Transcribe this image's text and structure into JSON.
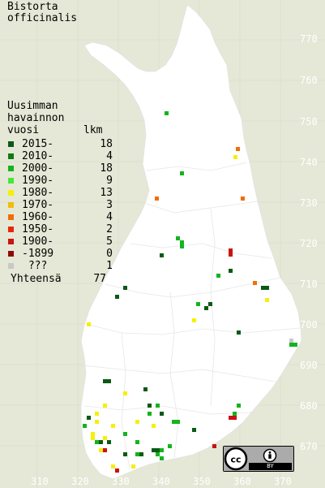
{
  "title": {
    "line1": "Bistorta",
    "line2": "officinalis"
  },
  "legend": {
    "heading": [
      "Uusimman",
      "havainnon"
    ],
    "col_year": "vuosi",
    "col_count": "lkm",
    "rows": [
      {
        "label": "2015-",
        "count": "18",
        "color": "#0a5a14"
      },
      {
        "label": "2010-",
        "count": "4",
        "color": "#0e7a16"
      },
      {
        "label": "2000-",
        "count": "18",
        "color": "#14b41e"
      },
      {
        "label": "1990-",
        "count": "9",
        "color": "#46e63c"
      },
      {
        "label": "1980-",
        "count": "13",
        "color": "#f5f00a"
      },
      {
        "label": "1970-",
        "count": "3",
        "color": "#f0be0a"
      },
      {
        "label": "1960-",
        "count": "4",
        "color": "#f06e0a"
      },
      {
        "label": "1950-",
        "count": "2",
        "color": "#e6280a"
      },
      {
        "label": "1900-",
        "count": "5",
        "color": "#c81414"
      },
      {
        "label": "-1899",
        "count": "0",
        "color": "#8c0a0a"
      },
      {
        "label": " ???",
        "count": "1",
        "color": "#c8c8c8"
      }
    ],
    "total_label": "Yhteensä",
    "total_count": "77"
  },
  "axes": {
    "y_ticks": [
      "770",
      "760",
      "750",
      "740",
      "730",
      "720",
      "710",
      "700",
      "690",
      "680",
      "670"
    ],
    "x_ticks": [
      "310",
      "320",
      "330",
      "340",
      "350",
      "360",
      "370"
    ]
  },
  "colors": {
    "background": "#e5e8d6",
    "land": "#ffffff",
    "grid": "#d6d9c6",
    "tick_text": "#ffffff"
  },
  "license": {
    "label": "BY",
    "icons": [
      "cc-icon",
      "attribution-icon"
    ]
  }
}
